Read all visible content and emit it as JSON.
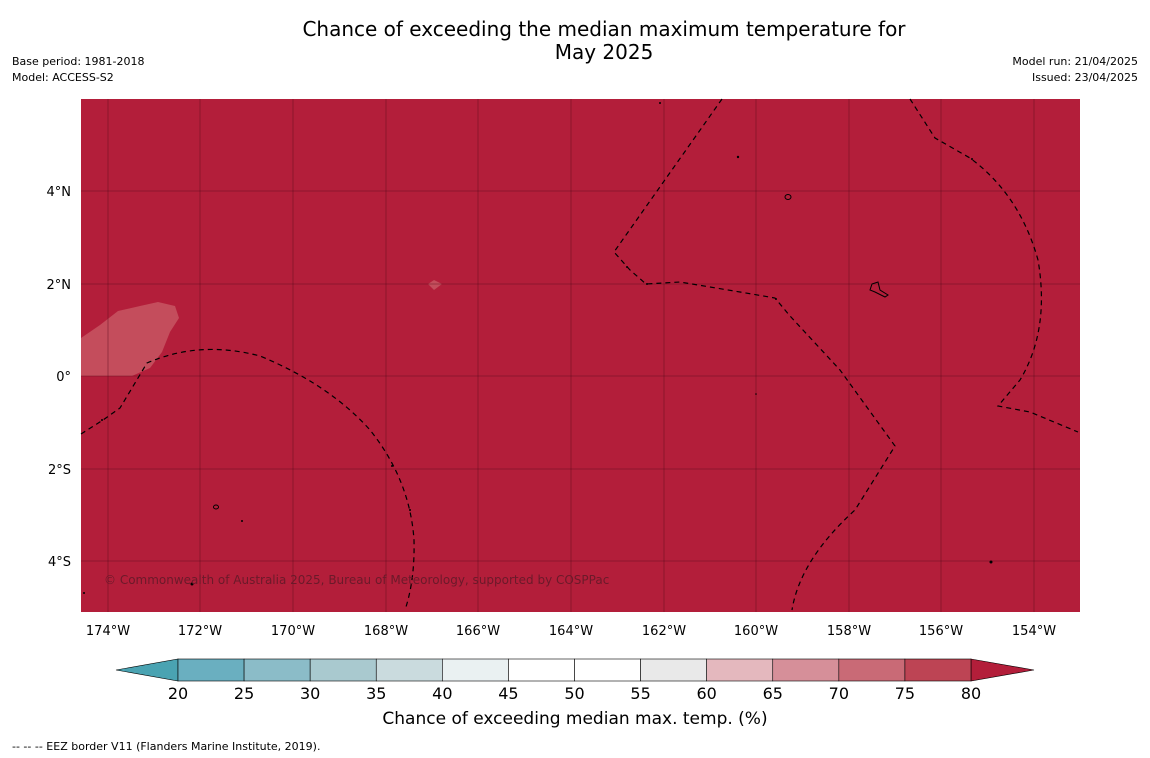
{
  "title_line1": "Chance of exceeding the median maximum temperature for",
  "title_line2": "May 2025",
  "meta_left": [
    "Base period: 1981-2018",
    "Model: ACCESS-S2"
  ],
  "meta_right": [
    "Model run: 21/04/2025",
    "Issued: 23/04/2025"
  ],
  "map": {
    "lon_labels": [
      "174°W",
      "172°W",
      "170°W",
      "168°W",
      "166°W",
      "164°W",
      "162°W",
      "160°W",
      "158°W",
      "156°W",
      "154°W"
    ],
    "lat_labels": [
      "4°N",
      "2°N",
      "0°",
      "2°S",
      "4°S"
    ],
    "copyright": "© Commonwealth of Australia 2025, Bureau of Meteorology, supported by COSPPac",
    "background_color": "#b31e3a",
    "patch_color": "#c44d5c"
  },
  "colorbar": {
    "labels": [
      "20",
      "25",
      "30",
      "35",
      "40",
      "45",
      "50",
      "55",
      "60",
      "65",
      "70",
      "75",
      "80"
    ],
    "colors": [
      "#6aafc0",
      "#8bbcc8",
      "#a9c9cf",
      "#cadbde",
      "#eaf1f2",
      "#ffffff",
      "#ffffff",
      "#e9e9e9",
      "#e4b8be",
      "#d68f99",
      "#c96a76",
      "#bd4454"
    ],
    "under_color": "#4aa3b2",
    "over_color": "#b31e3a",
    "title": "Chance of exceeding median max. temp. (%)"
  },
  "footnote": "--  --  -- EEZ border V11 (Flanders Marine Institute, 2019)."
}
